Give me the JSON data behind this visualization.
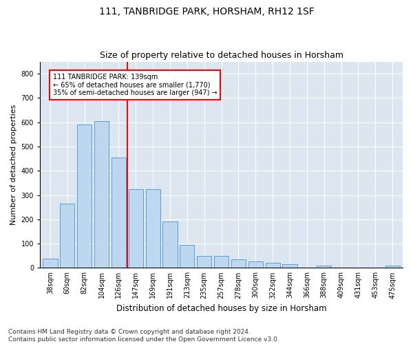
{
  "title": "111, TANBRIDGE PARK, HORSHAM, RH12 1SF",
  "subtitle": "Size of property relative to detached houses in Horsham",
  "xlabel": "Distribution of detached houses by size in Horsham",
  "ylabel": "Number of detached properties",
  "bar_labels": [
    "38sqm",
    "60sqm",
    "82sqm",
    "104sqm",
    "126sqm",
    "147sqm",
    "169sqm",
    "191sqm",
    "213sqm",
    "235sqm",
    "257sqm",
    "278sqm",
    "300sqm",
    "322sqm",
    "344sqm",
    "366sqm",
    "388sqm",
    "409sqm",
    "431sqm",
    "453sqm",
    "475sqm"
  ],
  "bar_values": [
    38,
    265,
    590,
    605,
    455,
    325,
    325,
    190,
    95,
    50,
    50,
    35,
    25,
    20,
    15,
    0,
    10,
    0,
    0,
    0,
    10
  ],
  "bar_color": "#bdd7ee",
  "bar_edge_color": "#5b9bd5",
  "vline_color": "#ff0000",
  "annotation_text": "111 TANBRIDGE PARK: 139sqm\n← 65% of detached houses are smaller (1,770)\n35% of semi-detached houses are larger (947) →",
  "annotation_box_color": "#ffffff",
  "annotation_box_edge_color": "#ff0000",
  "ylim": [
    0,
    850
  ],
  "yticks": [
    0,
    100,
    200,
    300,
    400,
    500,
    600,
    700,
    800
  ],
  "footnote": "Contains HM Land Registry data © Crown copyright and database right 2024.\nContains public sector information licensed under the Open Government Licence v3.0.",
  "plot_bg_color": "#dce6f1",
  "grid_color": "#ffffff",
  "title_fontsize": 10,
  "subtitle_fontsize": 9,
  "ylabel_fontsize": 8,
  "xlabel_fontsize": 8.5,
  "tick_fontsize": 7,
  "annotation_fontsize": 7,
  "footnote_fontsize": 6.5
}
